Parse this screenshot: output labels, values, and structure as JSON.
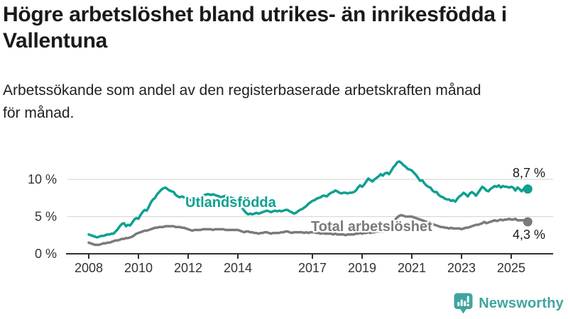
{
  "title": "Högre arbetslöshet bland utrikes- än inrikesfödda i Vallentuna",
  "subtitle": "Arbetssökande som andel av den registerbaserade arbetskraften månad för månad.",
  "branding": {
    "name": "Newsworthy",
    "icon": "bar-chart-speech-bubble-icon",
    "color": "#3ea59e"
  },
  "chart_data": {
    "type": "line",
    "title": "Högre arbetslöshet bland utrikes- än inrikesfödda i Vallentuna",
    "subtitle": "Arbetssökande som andel av den registerbaserade arbetskraften månad för månad.",
    "x_unit": "month",
    "x_start": "2008-01",
    "x_end": "2025-09",
    "grid": "horizontal",
    "legend_position": "inline-labels",
    "y_axis": {
      "ticks": [
        0,
        5,
        10
      ],
      "tick_labels": [
        "0 %",
        "5 %",
        "10 %"
      ],
      "range": [
        0,
        13.5
      ]
    },
    "x_axis": {
      "tick_years": [
        2008,
        2010,
        2012,
        2014,
        2017,
        2019,
        2021,
        2023,
        2025
      ],
      "tick_labels": [
        "2008",
        "2010",
        "2012",
        "2014",
        "2017",
        "2019",
        "2021",
        "2023",
        "2025"
      ]
    },
    "series": [
      {
        "id": "utlandsfodda",
        "label": "Utlandsfödda",
        "color": "#0ea091",
        "end_value": 8.7,
        "end_value_label": "8,7 %",
        "values": [
          2.6,
          2.5,
          2.4,
          2.3,
          2.2,
          2.3,
          2.4,
          2.4,
          2.5,
          2.6,
          2.6,
          2.7,
          2.7,
          3.0,
          3.3,
          3.7,
          4.0,
          4.1,
          3.7,
          3.9,
          3.8,
          4.2,
          4.6,
          4.8,
          4.7,
          5.2,
          5.6,
          5.9,
          5.8,
          6.3,
          6.9,
          7.3,
          7.5,
          8.0,
          8.3,
          8.6,
          8.8,
          8.9,
          8.7,
          8.5,
          8.4,
          8.3,
          7.9,
          7.7,
          7.6,
          7.7,
          7.6,
          7.5,
          7.4,
          7.2,
          7.1,
          7.2,
          7.3,
          7.5,
          7.6,
          7.7,
          7.9,
          8.0,
          8.0,
          7.9,
          8.0,
          7.9,
          7.8,
          7.7,
          7.6,
          7.7,
          7.8,
          7.7,
          7.6,
          7.5,
          7.4,
          7.2,
          6.9,
          6.5,
          6.2,
          5.8,
          5.5,
          5.3,
          5.4,
          5.3,
          5.4,
          5.5,
          5.4,
          5.5,
          5.6,
          5.7,
          5.8,
          5.7,
          5.6,
          5.7,
          5.8,
          5.7,
          5.8,
          5.7,
          5.8,
          5.9,
          5.9,
          5.7,
          5.6,
          5.4,
          5.5,
          5.7,
          5.9,
          6.0,
          6.2,
          6.4,
          6.7,
          6.9,
          7.1,
          7.2,
          7.4,
          7.5,
          7.6,
          7.8,
          7.8,
          7.7,
          8.0,
          8.2,
          8.3,
          8.5,
          8.4,
          8.2,
          8.1,
          8.2,
          8.2,
          8.1,
          8.2,
          8.2,
          8.3,
          8.5,
          8.9,
          9.2,
          9.0,
          9.3,
          9.7,
          10.1,
          9.9,
          9.7,
          10.0,
          10.2,
          10.4,
          10.7,
          10.5,
          10.8,
          10.9,
          10.7,
          11.1,
          11.6,
          11.9,
          12.3,
          12.4,
          12.2,
          11.9,
          11.7,
          11.4,
          11.3,
          11.2,
          10.9,
          10.6,
          10.2,
          9.8,
          9.9,
          9.5,
          9.2,
          9.0,
          8.9,
          8.5,
          8.3,
          8.3,
          7.9,
          7.7,
          7.6,
          7.4,
          7.3,
          7.3,
          7.1,
          7.2,
          7.0,
          7.4,
          7.7,
          7.9,
          8.2,
          8.0,
          7.7,
          8.1,
          8.3,
          8.1,
          7.8,
          8.2,
          8.6,
          9.0,
          8.8,
          8.5,
          8.4,
          8.7,
          8.9,
          9.1,
          9.0,
          9.2,
          8.9,
          9.1,
          9.0,
          9.0,
          8.9,
          9.0,
          8.9,
          8.5,
          8.9,
          8.7,
          8.4,
          8.7,
          8.8,
          8.7
        ]
      },
      {
        "id": "total",
        "label": "Total arbetslöshet",
        "color": "#7a7a7d",
        "end_value": 4.3,
        "end_value_label": "4,3 %",
        "values": [
          1.5,
          1.4,
          1.3,
          1.2,
          1.2,
          1.2,
          1.3,
          1.4,
          1.4,
          1.5,
          1.5,
          1.6,
          1.7,
          1.8,
          1.8,
          1.9,
          2.0,
          2.0,
          2.1,
          2.1,
          2.2,
          2.3,
          2.5,
          2.7,
          2.8,
          2.9,
          3.0,
          3.1,
          3.1,
          3.2,
          3.3,
          3.4,
          3.5,
          3.5,
          3.6,
          3.6,
          3.6,
          3.7,
          3.7,
          3.7,
          3.7,
          3.7,
          3.6,
          3.6,
          3.6,
          3.5,
          3.5,
          3.4,
          3.3,
          3.2,
          3.1,
          3.2,
          3.2,
          3.2,
          3.2,
          3.3,
          3.3,
          3.3,
          3.3,
          3.3,
          3.2,
          3.3,
          3.3,
          3.3,
          3.3,
          3.3,
          3.2,
          3.2,
          3.2,
          3.2,
          3.2,
          3.2,
          3.2,
          3.1,
          3.0,
          2.9,
          3.0,
          3.0,
          2.9,
          2.9,
          2.8,
          2.8,
          2.7,
          2.8,
          2.8,
          2.9,
          2.9,
          2.8,
          2.7,
          2.8,
          2.8,
          2.8,
          2.8,
          2.9,
          2.9,
          3.0,
          3.0,
          2.9,
          2.8,
          2.9,
          2.9,
          2.9,
          2.9,
          2.9,
          2.8,
          2.9,
          2.8,
          2.9,
          2.9,
          2.9,
          2.8,
          2.8,
          2.7,
          2.8,
          2.7,
          2.7,
          2.7,
          2.7,
          2.6,
          2.7,
          2.6,
          2.6,
          2.6,
          2.6,
          2.5,
          2.6,
          2.6,
          2.6,
          2.6,
          2.7,
          2.7,
          2.8,
          2.7,
          2.8,
          2.8,
          2.9,
          2.8,
          2.9,
          2.9,
          3.0,
          3.0,
          3.0,
          3.0,
          3.1,
          3.1,
          3.2,
          3.6,
          4.2,
          4.6,
          4.9,
          5.1,
          5.2,
          5.1,
          5.0,
          5.0,
          5.0,
          5.0,
          4.9,
          4.8,
          4.7,
          4.6,
          4.5,
          4.4,
          4.3,
          4.2,
          4.1,
          4.0,
          3.9,
          3.8,
          3.7,
          3.6,
          3.6,
          3.5,
          3.5,
          3.4,
          3.5,
          3.4,
          3.4,
          3.4,
          3.4,
          3.3,
          3.4,
          3.5,
          3.5,
          3.6,
          3.7,
          3.8,
          3.9,
          3.9,
          4.0,
          4.1,
          4.3,
          4.1,
          4.2,
          4.3,
          4.4,
          4.5,
          4.4,
          4.5,
          4.6,
          4.5,
          4.6,
          4.6,
          4.7,
          4.6,
          4.6,
          4.7,
          4.5,
          4.5,
          4.5,
          4.5,
          4.4,
          4.3
        ]
      }
    ],
    "colors": {
      "gridline": "#d9d9d9",
      "axis": "#2f2f2f",
      "axis_text": "#333333"
    }
  }
}
